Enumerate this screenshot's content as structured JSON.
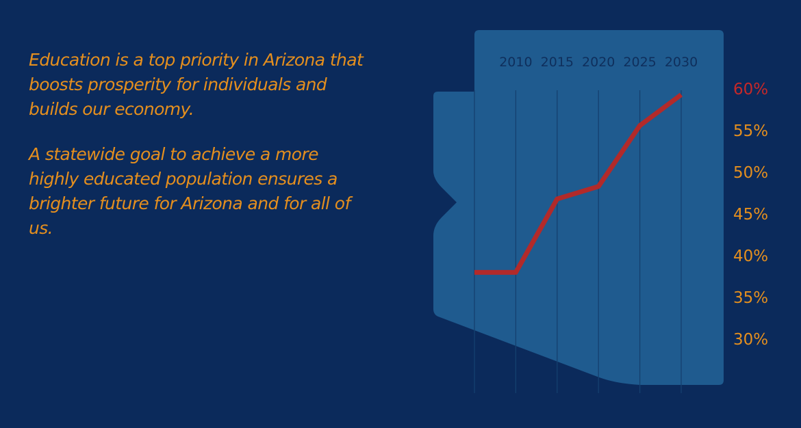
{
  "intro": {
    "paragraph_1": "Education is a top priority in Arizona that boosts prosperity for individuals and builds our economy.",
    "paragraph_2": "A statewide goal to achieve a more highly educated population ensures a brighter future for Arizona and for all of us."
  },
  "colors": {
    "background": "#0b2a5b",
    "state_shape": "#1f5b8f",
    "line": "#b22a2a",
    "text_orange": "#e58f1e",
    "highlight_tick": "#c62828"
  },
  "chart_data": {
    "type": "line",
    "title": "",
    "xlabel": "",
    "ylabel": "",
    "x_ticks": [
      "2010",
      "2015",
      "2020",
      "2025",
      "2030"
    ],
    "y_ticks": [
      "60%",
      "55%",
      "50%",
      "45%",
      "40%",
      "35%",
      "30%"
    ],
    "highlight_tick": "60%",
    "ylim": [
      30,
      60
    ],
    "series": [
      {
        "x": [
          2005,
          2010,
          2015,
          2020,
          2025,
          2030
        ],
        "values": [
          38.0,
          38.0,
          46.8,
          48.3,
          55.6,
          59.3
        ]
      }
    ],
    "background_shape": "arizona-map",
    "grid": true
  }
}
